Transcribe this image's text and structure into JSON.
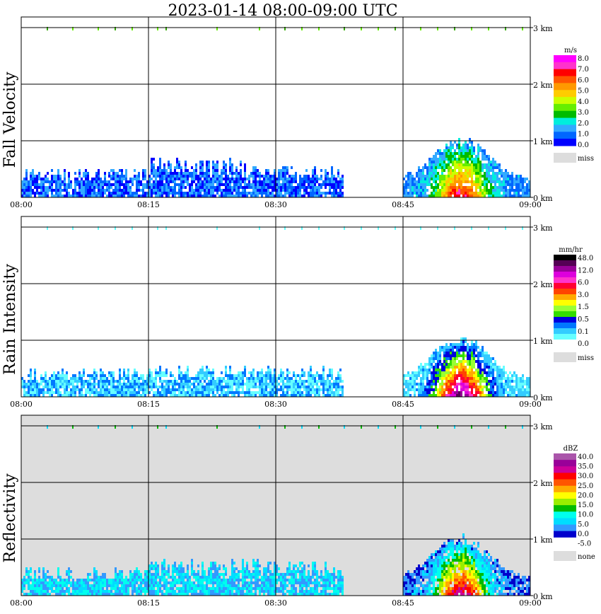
{
  "title": "2023-01-14   08:00-09:00 UTC",
  "chart_data": [
    {
      "type": "heatmap",
      "ylabel": "Fall Velocity",
      "unit": "m/s",
      "background": "#ffffff",
      "x_ticks": [
        "08:00",
        "08:15",
        "08:30",
        "08:45",
        "09:00"
      ],
      "y_ticks": [
        "0 km",
        "1 km",
        "2 km",
        "3 km"
      ],
      "ylim_km": [
        0,
        3.0
      ],
      "grid": true,
      "colorbar": {
        "colors": [
          "#0000ff",
          "#0066ff",
          "#33aaff",
          "#00eedd",
          "#00bb00",
          "#66ee00",
          "#ccff00",
          "#ffcc00",
          "#ff9900",
          "#ff5500",
          "#ff0000",
          "#ff33cc",
          "#ff00ff"
        ],
        "labels": [
          "8.0",
          "7.0",
          "6.0",
          "5.0",
          "4.0",
          "3.0",
          "2.0",
          "1.0",
          "0.0"
        ],
        "miss_label": "miss",
        "miss_color": "#dddddd"
      },
      "echo": [
        {
          "t0": 0,
          "t1": 15,
          "top_km": 0.55,
          "dominant": "blue",
          "note": "low shallow echo"
        },
        {
          "t0": 15,
          "t1": 30,
          "top_km": 0.75,
          "dominant": "blue"
        },
        {
          "t0": 30,
          "t1": 38,
          "top_km": 0.6,
          "dominant": "blue"
        },
        {
          "t0": 45,
          "t1": 60,
          "top_km": 1.05,
          "dominant": "green",
          "note": "convective cell near 08:53"
        }
      ]
    },
    {
      "type": "heatmap",
      "ylabel": "Rain Intensity",
      "unit": "mm/hr",
      "background": "#ffffff",
      "x_ticks": [
        "08:00",
        "08:15",
        "08:30",
        "08:45",
        "09:00"
      ],
      "y_ticks": [
        "0 km",
        "1 km",
        "2 km",
        "3 km"
      ],
      "ylim_km": [
        0,
        3.0
      ],
      "grid": true,
      "colorbar": {
        "colors": [
          "#ffffff",
          "#66ffff",
          "#33ccff",
          "#0077ff",
          "#0000dd",
          "#33dd00",
          "#99ff33",
          "#ffff00",
          "#ffaa00",
          "#ff4400",
          "#ff0033",
          "#ff33cc",
          "#dd00dd",
          "#990099",
          "#550055",
          "#000000"
        ],
        "labels": [
          "48.0",
          "12.0",
          "6.0",
          "3.0",
          "1.5",
          "0.5",
          "0.1",
          "0.0"
        ],
        "miss_label": "miss",
        "miss_color": "#dddddd"
      },
      "echo": [
        {
          "t0": 0,
          "t1": 15,
          "top_km": 0.55,
          "dominant": "cyan"
        },
        {
          "t0": 15,
          "t1": 30,
          "top_km": 0.6,
          "dominant": "cyan"
        },
        {
          "t0": 30,
          "t1": 38,
          "top_km": 0.6,
          "dominant": "blue"
        },
        {
          "t0": 45,
          "t1": 60,
          "top_km": 1.05,
          "dominant": "red",
          "note": "heavy rain core 08:52-08:57"
        }
      ]
    },
    {
      "type": "heatmap",
      "ylabel": "Reflectivity",
      "unit": "dBZ",
      "background": "#dddddd",
      "x_ticks": [
        "08:00",
        "08:15",
        "08:30",
        "08:45",
        "09:00"
      ],
      "y_ticks": [
        "0 km",
        "1 km",
        "2 km",
        "3 km"
      ],
      "ylim_km": [
        0,
        3.0
      ],
      "grid": true,
      "colorbar": {
        "colors": [
          "#ffffff",
          "#0000cc",
          "#3399ff",
          "#00ddff",
          "#00ffee",
          "#00bb00",
          "#99ee00",
          "#ffff00",
          "#ffaa00",
          "#ff5500",
          "#ff0000",
          "#cc0099",
          "#990099",
          "#aa55aa"
        ],
        "labels": [
          "40.0",
          "35.0",
          "30.0",
          "25.0",
          "20.0",
          "15.0",
          "10.0",
          "5.0",
          "0.0",
          "-5.0"
        ],
        "miss_label": "none",
        "miss_color": "#dddddd"
      },
      "echo": [
        {
          "t0": 0,
          "t1": 15,
          "top_km": 0.55,
          "dominant": "cyan"
        },
        {
          "t0": 15,
          "t1": 30,
          "top_km": 0.7,
          "dominant": "cyan"
        },
        {
          "t0": 30,
          "t1": 38,
          "top_km": 0.65,
          "dominant": "green"
        },
        {
          "t0": 45,
          "t1": 60,
          "top_km": 1.05,
          "dominant": "orange",
          "note": "core reflectivity 25-30 dBZ"
        }
      ]
    }
  ]
}
